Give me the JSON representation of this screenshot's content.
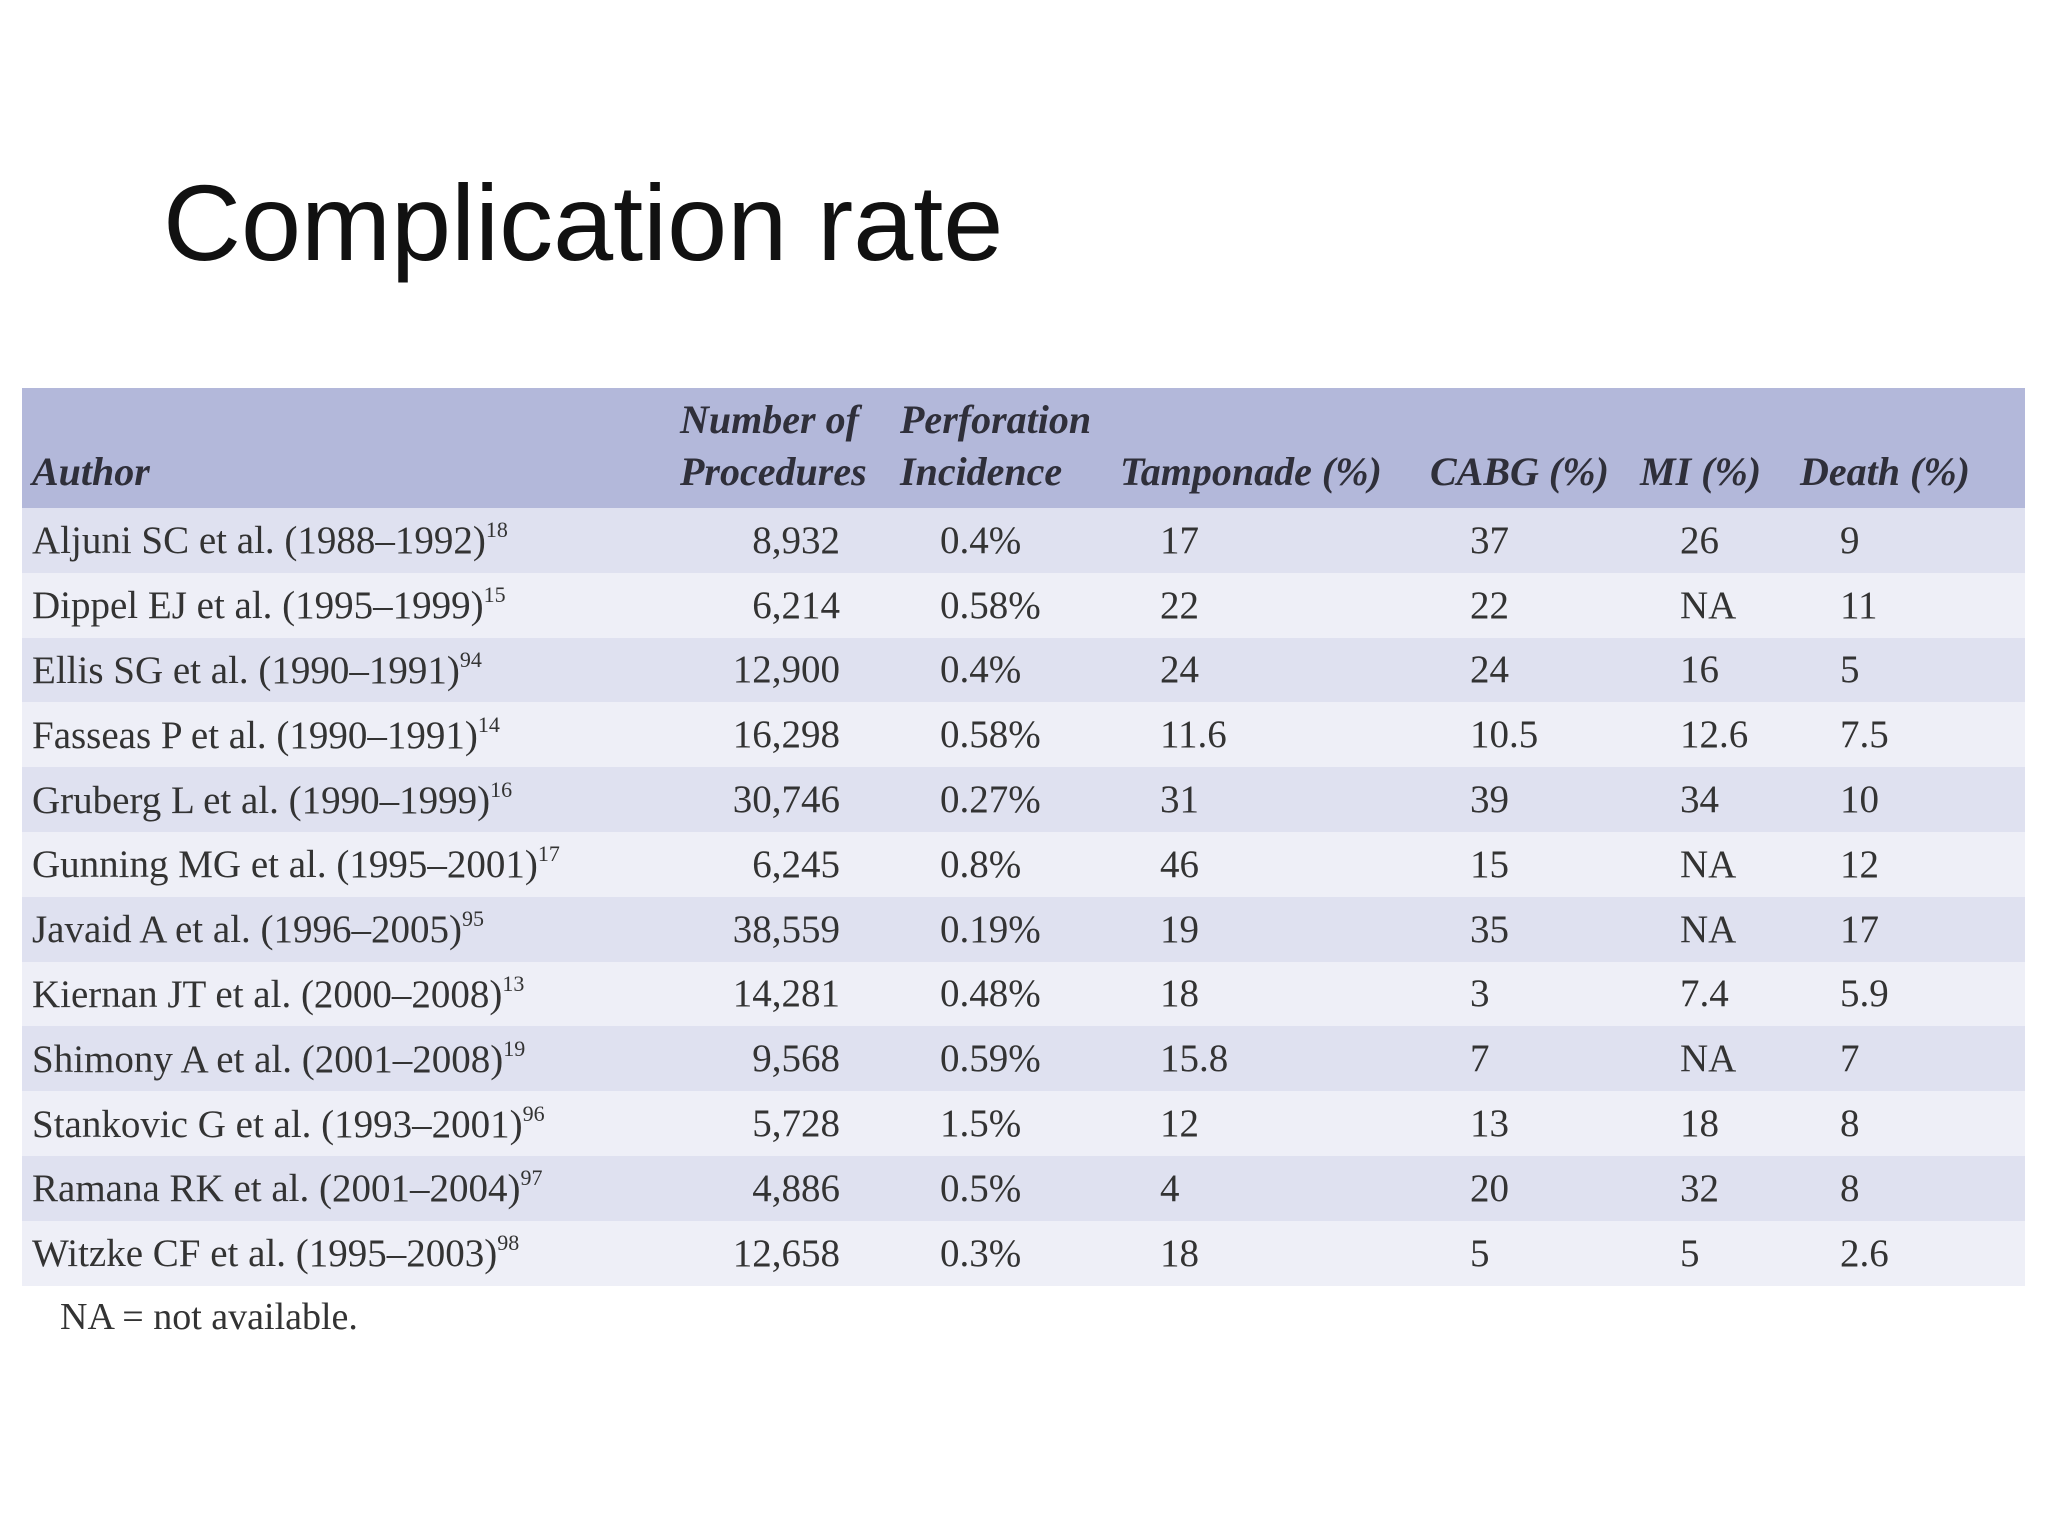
{
  "title": "Complication rate",
  "table": {
    "header": [
      "Author",
      "Number of Procedures",
      "Perforation Incidence",
      "Tamponade (%)",
      "CABG (%)",
      "MI (%)",
      "Death (%)"
    ],
    "rows": [
      {
        "author": "Aljuni SC et al. (1988–1992)",
        "ref": "18",
        "cells": [
          "8,932",
          "0.4%",
          "17",
          "37",
          "26",
          "9"
        ]
      },
      {
        "author": "Dippel EJ et al. (1995–1999)",
        "ref": "15",
        "cells": [
          "6,214",
          "0.58%",
          "22",
          "22",
          "NA",
          "11"
        ]
      },
      {
        "author": "Ellis SG et al. (1990–1991)",
        "ref": "94",
        "cells": [
          "12,900",
          "0.4%",
          "24",
          "24",
          "16",
          "5"
        ]
      },
      {
        "author": "Fasseas P et al. (1990–1991)",
        "ref": "14",
        "cells": [
          "16,298",
          "0.58%",
          "11.6",
          "10.5",
          "12.6",
          "7.5"
        ]
      },
      {
        "author": "Gruberg L et al. (1990–1999)",
        "ref": "16",
        "cells": [
          "30,746",
          "0.27%",
          "31",
          "39",
          "34",
          "10"
        ]
      },
      {
        "author": "Gunning MG et al. (1995–2001)",
        "ref": "17",
        "cells": [
          "6,245",
          "0.8%",
          "46",
          "15",
          "NA",
          "12"
        ]
      },
      {
        "author": "Javaid A et al. (1996–2005)",
        "ref": "95",
        "cells": [
          "38,559",
          "0.19%",
          "19",
          "35",
          "NA",
          "17"
        ]
      },
      {
        "author": "Kiernan JT et al. (2000–2008)",
        "ref": "13",
        "cells": [
          "14,281",
          "0.48%",
          "18",
          "3",
          "7.4",
          "5.9"
        ]
      },
      {
        "author": "Shimony A et al. (2001–2008)",
        "ref": "19",
        "cells": [
          "9,568",
          "0.59%",
          "15.8",
          "7",
          "NA",
          "7"
        ]
      },
      {
        "author": "Stankovic G et al. (1993–2001)",
        "ref": "96",
        "cells": [
          "5,728",
          "1.5%",
          "12",
          "13",
          "18",
          "8"
        ]
      },
      {
        "author": "Ramana RK et al. (2001–2004)",
        "ref": "97",
        "cells": [
          "4,886",
          "0.5%",
          "4",
          "20",
          "32",
          "8"
        ]
      },
      {
        "author": "Witzke CF et al. (1995–2003)",
        "ref": "98",
        "cells": [
          "12,658",
          "0.3%",
          "18",
          "5",
          "5",
          "2.6"
        ]
      }
    ],
    "footnote": "NA = not available."
  }
}
